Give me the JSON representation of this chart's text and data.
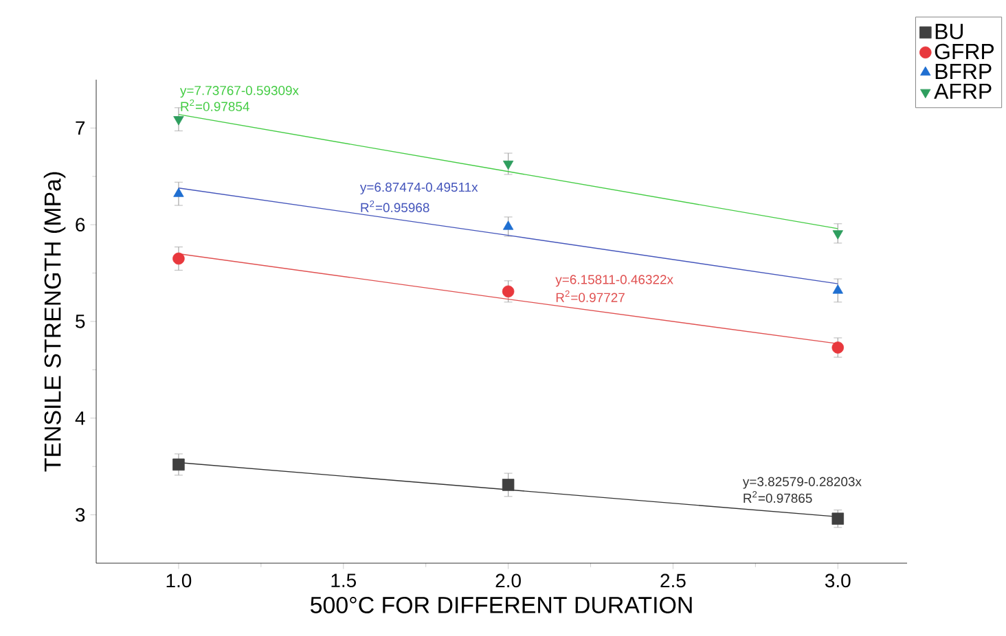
{
  "chart_data": {
    "type": "scatter",
    "xlabel": "500°C FOR DIFFERENT DURATION",
    "ylabel": "TENSILE STRENGTH (MPa)",
    "x": [
      1,
      2,
      3
    ],
    "series": [
      {
        "name": "BU",
        "color": "#404040",
        "marker": "square",
        "values": [
          3.52,
          3.31,
          2.96
        ],
        "errors": [
          0.11,
          0.12,
          0.09
        ]
      },
      {
        "name": "GFRP",
        "color": "#e8383d",
        "marker": "circle",
        "values": [
          5.65,
          5.31,
          4.73
        ],
        "errors": [
          0.12,
          0.11,
          0.1
        ]
      },
      {
        "name": "BFRP",
        "color": "#1f6fd1",
        "marker": "triangle",
        "values": [
          6.32,
          5.98,
          5.32
        ],
        "errors": [
          0.12,
          0.1,
          0.12
        ]
      },
      {
        "name": "AFRP",
        "color": "#2e9e5e",
        "marker": "triangle down",
        "values": [
          7.09,
          6.63,
          5.91
        ],
        "errors": [
          0.12,
          0.11,
          0.1
        ]
      },
      {
        "type": "line",
        "color": "#333333",
        "values": [
          3.54,
          3.26,
          2.98
        ]
      },
      {
        "type": "line",
        "color": "#e05050",
        "values": [
          5.7,
          5.23,
          4.77
        ]
      },
      {
        "type": "line",
        "color": "#4455bb",
        "values": [
          6.38,
          5.89,
          5.39
        ]
      },
      {
        "type": "line",
        "color": "#44cc44",
        "values": [
          7.14,
          6.55,
          5.96
        ]
      }
    ],
    "annotations": [
      "y=3.82579-0.28203x",
      "R$^{2}$=0.97865",
      "y=6.15811-0.46322x",
      "R$^{2}$=0.97727",
      "y=6.87474-0.49511x",
      "R$^{2}$=0.95968",
      "y=7.73767-0.59309x",
      "R$^{2}$=0.97854"
    ],
    "xlim": [
      0.75,
      3.21
    ],
    "ylim": [
      2.5,
      7.5
    ],
    "xticks": [
      {
        "value": 1,
        "label": "1.0"
      },
      1.5,
      {
        "value": 2,
        "label": "2.0"
      },
      2.5,
      {
        "value": 3,
        "label": "3.0"
      }
    ],
    "yticks": [
      3,
      4,
      5,
      6,
      7
    ],
    "legend": "top right"
  }
}
